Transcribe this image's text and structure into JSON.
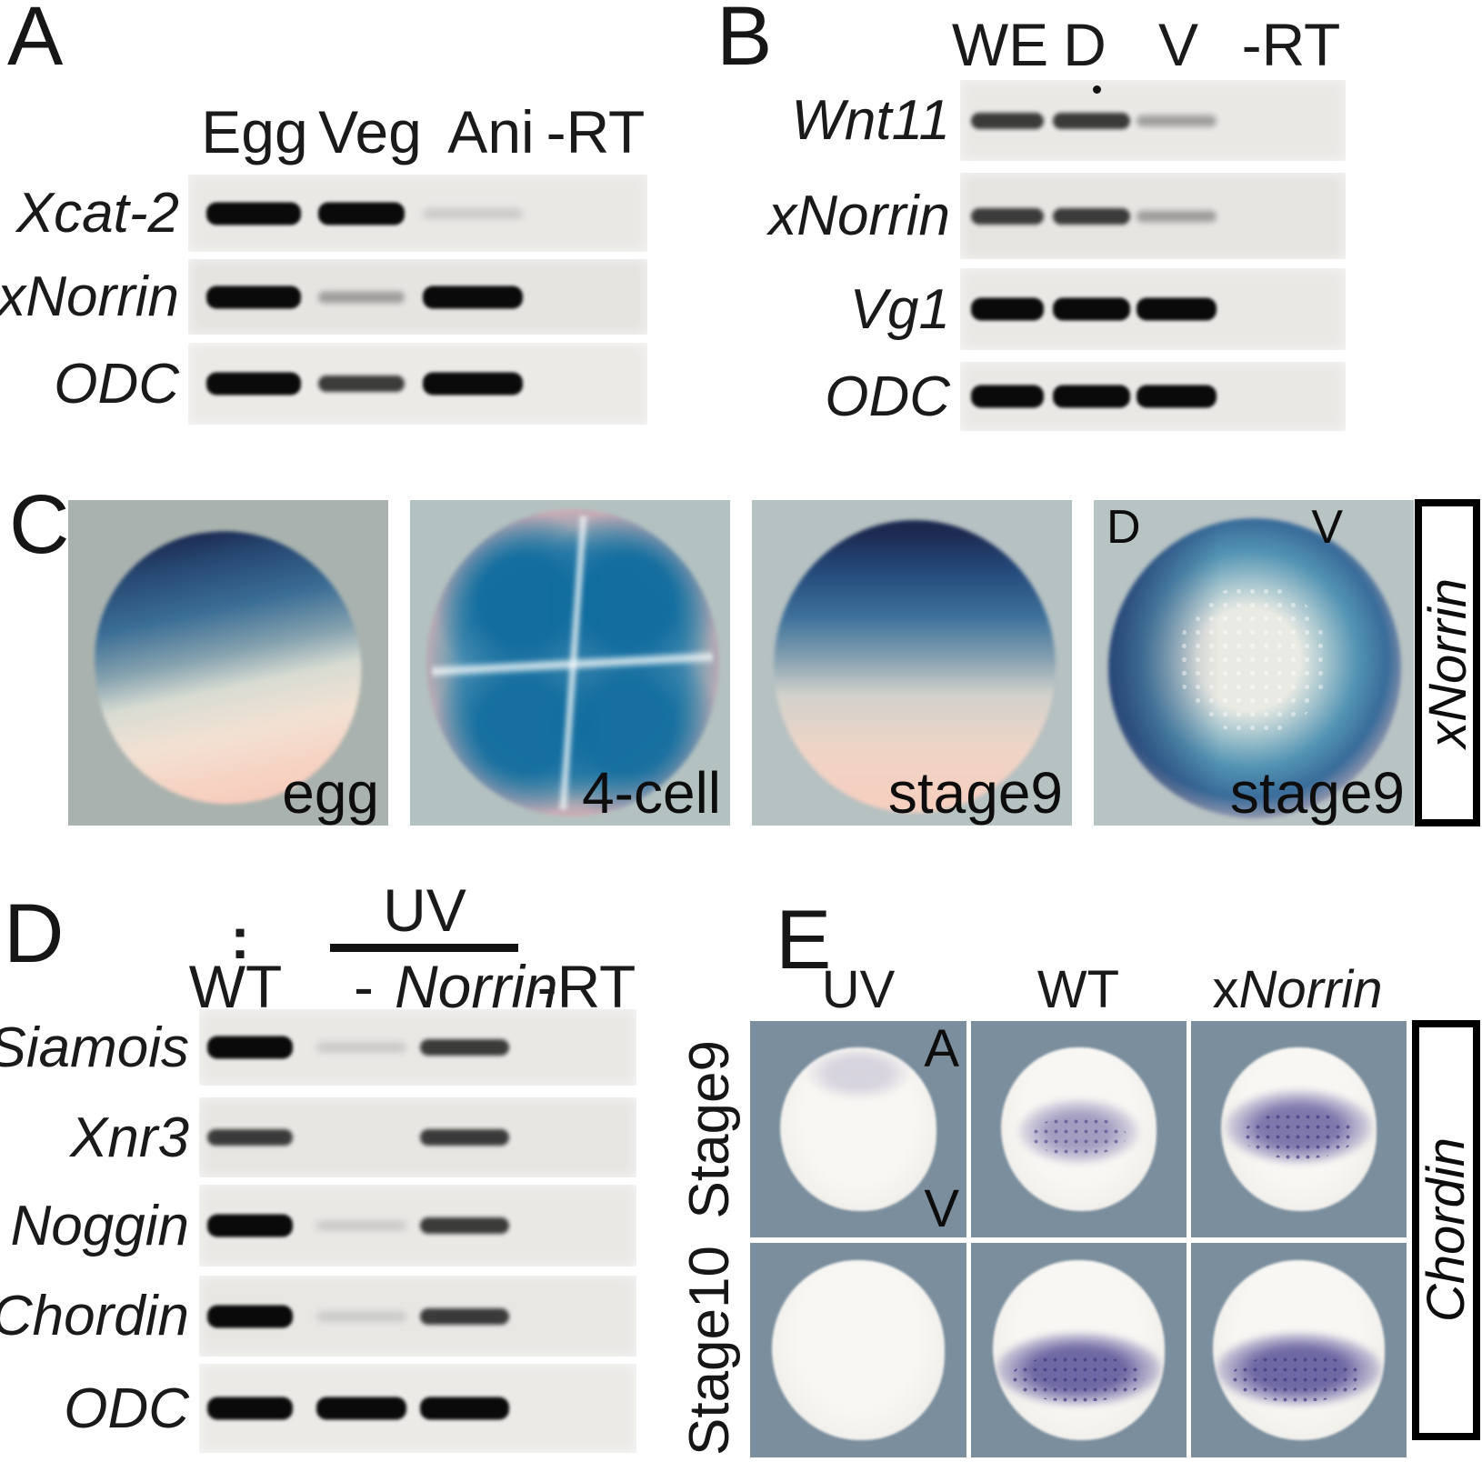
{
  "panels": {
    "A": {
      "label": "A",
      "lanes": [
        "Egg",
        "Veg",
        "Ani",
        "-RT"
      ],
      "rows": [
        {
          "gene": "Xcat-2",
          "bands": [
            "strong",
            "strong",
            "trace",
            "none"
          ]
        },
        {
          "gene": "xNorrin",
          "bands": [
            "strong",
            "faint",
            "strong",
            "none"
          ]
        },
        {
          "gene": "ODC",
          "bands": [
            "strong",
            "medium",
            "strong",
            "none"
          ]
        }
      ]
    },
    "B": {
      "label": "B",
      "lanes": [
        "WE",
        "D",
        "V",
        "-RT"
      ],
      "rows": [
        {
          "gene": "Wnt11",
          "bands": [
            "medium",
            "medium",
            "faint",
            "none"
          ]
        },
        {
          "gene": "xNorrin",
          "bands": [
            "medium",
            "medium",
            "faint",
            "none"
          ]
        },
        {
          "gene": "Vg1",
          "bands": [
            "strong",
            "strong",
            "strong",
            "none"
          ]
        },
        {
          "gene": "ODC",
          "bands": [
            "strong",
            "strong",
            "strong",
            "none"
          ]
        }
      ]
    },
    "C": {
      "label": "C",
      "side_label": "xNorrin",
      "images": [
        {
          "caption": "egg"
        },
        {
          "caption": "4-cell"
        },
        {
          "caption": "stage9"
        },
        {
          "caption": "stage9",
          "corner_left": "D",
          "corner_right": "V"
        }
      ]
    },
    "D": {
      "label": "D",
      "uv_group_label": "UV",
      "wt_marker": ":",
      "lanes": [
        "WT",
        "-",
        "Norrin",
        "-RT"
      ],
      "rows": [
        {
          "gene": "Siamois",
          "bands": [
            "strong",
            "trace",
            "medium",
            "none"
          ]
        },
        {
          "gene": "Xnr3",
          "bands": [
            "medium",
            "none",
            "medium",
            "none"
          ]
        },
        {
          "gene": "Noggin",
          "bands": [
            "strong",
            "trace",
            "medium",
            "none"
          ]
        },
        {
          "gene": "Chordin",
          "bands": [
            "strong",
            "trace",
            "medium",
            "none"
          ]
        },
        {
          "gene": "ODC",
          "bands": [
            "strong",
            "strong",
            "strong",
            "none"
          ]
        }
      ]
    },
    "E": {
      "label": "E",
      "side_label": "Chordin",
      "columns": [
        {
          "prefix": "",
          "label": "UV"
        },
        {
          "prefix": "",
          "label": "WT"
        },
        {
          "prefix": "x",
          "label": "Norrin"
        }
      ],
      "row_labels": [
        "Stage9",
        "Stage10"
      ],
      "corner_top": "A",
      "corner_bottom": "V",
      "staining": [
        [
          "trace",
          "moderate",
          "strong"
        ],
        [
          "none",
          "strong",
          "strong"
        ]
      ]
    }
  }
}
